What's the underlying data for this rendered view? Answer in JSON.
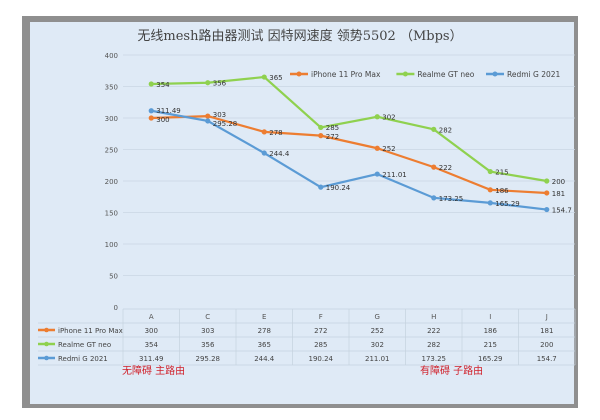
{
  "chart_data": {
    "type": "line",
    "title": "无线mesh路由器测试 因特网速度 领势5502 （Mbps）",
    "categories": [
      "A",
      "C",
      "E",
      "F",
      "G",
      "H",
      "I",
      "J"
    ],
    "ylim": [
      0,
      400
    ],
    "yticks": [
      0,
      50,
      100,
      150,
      200,
      250,
      300,
      350,
      400
    ],
    "grid": true,
    "legend": "top-right",
    "series": [
      {
        "name": "iPhone 11 Pro Max",
        "color": "#ed7d31",
        "values": [
          300,
          303,
          278,
          272,
          252,
          222,
          186,
          181
        ],
        "labels": [
          "300",
          "303",
          "278",
          "272",
          "252",
          "222",
          "186",
          "181"
        ]
      },
      {
        "name": "Realme GT neo",
        "color": "#8fd14f",
        "values": [
          354,
          356,
          365,
          285,
          302,
          282,
          215,
          200
        ],
        "labels": [
          "354",
          "356",
          "365",
          "285",
          "302",
          "282",
          "215",
          "200"
        ]
      },
      {
        "name": "Redmi G 2021",
        "color": "#5b9bd5",
        "values": [
          311.49,
          295.28,
          244.4,
          190.24,
          211.01,
          173.25,
          165.29,
          154.7
        ],
        "labels": [
          "311.49",
          "295.28",
          "244.4",
          "190.24",
          "211.01",
          "173.25",
          "165.29",
          "154.7"
        ]
      }
    ],
    "data_table": true
  },
  "annotations": {
    "left": "无障碍  主路由",
    "right": "有障碍  子路由"
  }
}
